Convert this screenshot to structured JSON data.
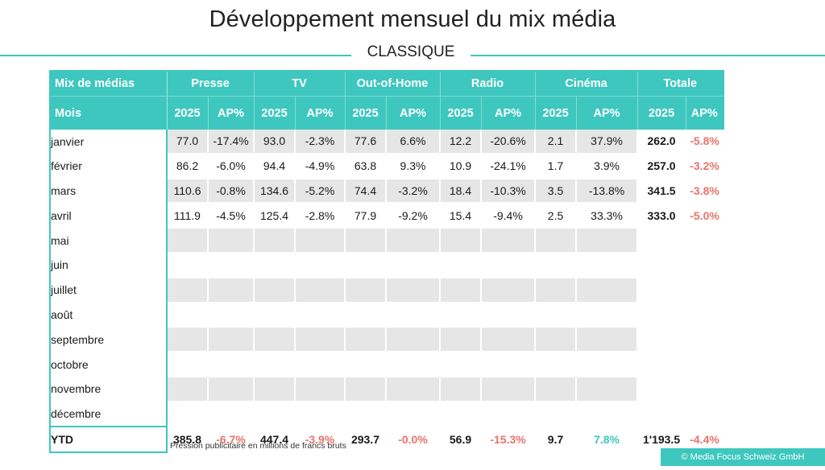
{
  "title": "Développement mensuel du mix média",
  "subtitle": "CLASSIQUE",
  "header": {
    "row1": [
      "Mix de médias",
      "Presse",
      "TV",
      "Out-of-Home",
      "Radio",
      "Cinéma",
      "Totale"
    ],
    "row2": [
      "Mois",
      "2025",
      "AP%",
      "2025",
      "AP%",
      "2025",
      "AP%",
      "2025",
      "AP%",
      "2025",
      "AP%",
      "2025",
      "AP%"
    ]
  },
  "rows": [
    {
      "month": "janvier",
      "values": [
        "77.0",
        "-17.4%",
        "93.0",
        "-2.3%",
        "77.6",
        "6.6%",
        "12.2",
        "-20.6%",
        "2.1",
        "37.9%",
        "262.0",
        "-5.8%"
      ]
    },
    {
      "month": "février",
      "values": [
        "86.2",
        "-6.0%",
        "94.4",
        "-4.9%",
        "63.8",
        "9.3%",
        "10.9",
        "-24.1%",
        "1.7",
        "3.9%",
        "257.0",
        "-3.2%"
      ]
    },
    {
      "month": "mars",
      "values": [
        "110.6",
        "-0.8%",
        "134.6",
        "-5.2%",
        "74.4",
        "-3.2%",
        "18.4",
        "-10.3%",
        "3.5",
        "-13.8%",
        "341.5",
        "-3.8%"
      ]
    },
    {
      "month": "avril",
      "values": [
        "111.9",
        "-4.5%",
        "125.4",
        "-2.8%",
        "77.9",
        "-9.2%",
        "15.4",
        "-9.4%",
        "2.5",
        "33.3%",
        "333.0",
        "-5.0%"
      ]
    },
    {
      "month": "mai",
      "values": [
        "",
        "",
        "",
        "",
        "",
        "",
        "",
        "",
        "",
        "",
        "",
        ""
      ]
    },
    {
      "month": "juin",
      "values": [
        "",
        "",
        "",
        "",
        "",
        "",
        "",
        "",
        "",
        "",
        "",
        ""
      ]
    },
    {
      "month": "juillet",
      "values": [
        "",
        "",
        "",
        "",
        "",
        "",
        "",
        "",
        "",
        "",
        "",
        ""
      ]
    },
    {
      "month": "août",
      "values": [
        "",
        "",
        "",
        "",
        "",
        "",
        "",
        "",
        "",
        "",
        "",
        ""
      ]
    },
    {
      "month": "septembre",
      "values": [
        "",
        "",
        "",
        "",
        "",
        "",
        "",
        "",
        "",
        "",
        "",
        ""
      ]
    },
    {
      "month": "octobre",
      "values": [
        "",
        "",
        "",
        "",
        "",
        "",
        "",
        "",
        "",
        "",
        "",
        ""
      ]
    },
    {
      "month": "novembre",
      "values": [
        "",
        "",
        "",
        "",
        "",
        "",
        "",
        "",
        "",
        "",
        "",
        ""
      ]
    },
    {
      "month": "décembre",
      "values": [
        "",
        "",
        "",
        "",
        "",
        "",
        "",
        "",
        "",
        "",
        "",
        ""
      ]
    }
  ],
  "ytd": {
    "label": "YTD",
    "values": [
      "385.8",
      "-6.7%",
      "447.4",
      "-3.9%",
      "293.7",
      "-0.0%",
      "56.9",
      "-15.3%",
      "9.7",
      "7.8%",
      "1'193.5",
      "-4.4%"
    ]
  },
  "footnote": "Pression publicitaire en millions de francs bruts",
  "copyright": "© Media Focus Schweiz GmbH",
  "colors": {
    "accent": "#3ec7bf",
    "negative": "#e8736b",
    "grey_cell": "#e6e6e6"
  }
}
